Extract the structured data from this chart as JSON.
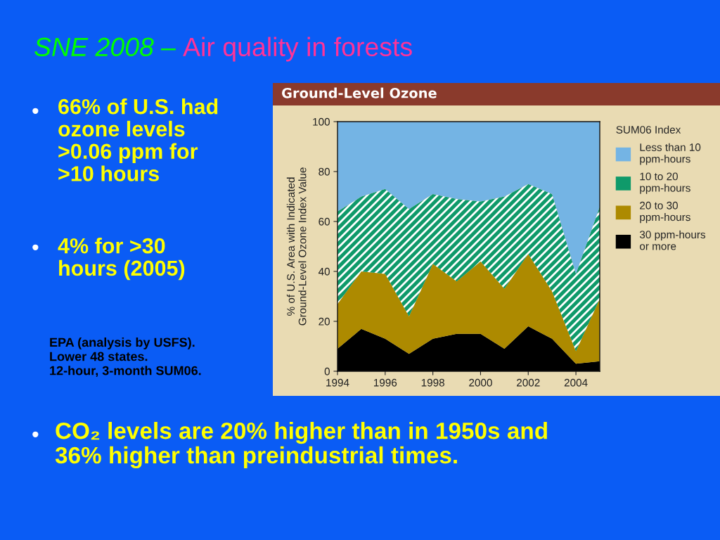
{
  "chart_data": {
    "type": "area",
    "stacked": true,
    "title": "Ground-Level Ozone",
    "ylabel": "% of U.S. Area with Indicated\nGround-Level Ozone Index Value",
    "legend_title": "SUM06 Index",
    "legend": "right",
    "x": [
      1994,
      1995,
      1996,
      1997,
      1998,
      1999,
      2000,
      2001,
      2002,
      2003,
      2004,
      2005
    ],
    "series": [
      {
        "name": "30 ppm-hours\nor more",
        "color": "#000000",
        "values": [
          9,
          17,
          13,
          7,
          13,
          15,
          15,
          9,
          18,
          13,
          3,
          4
        ]
      },
      {
        "name": "20 to 30\nppm-hours",
        "color": "#ad8a00",
        "values": [
          18,
          23,
          26,
          15,
          30,
          21,
          29,
          24,
          29,
          19,
          5,
          25
        ]
      },
      {
        "name": "10 to 20\nppm-hours",
        "color": "#0f9a6a",
        "values": [
          37,
          30,
          34,
          43,
          28,
          33,
          24,
          37,
          28,
          39,
          31,
          37
        ]
      },
      {
        "name": "Less than 10\nppm-hours",
        "color": "#74b4e4",
        "values": [
          36,
          30,
          27,
          35,
          29,
          31,
          32,
          30,
          25,
          29,
          61,
          34
        ]
      }
    ],
    "xlim": [
      1994,
      2005
    ],
    "xticks": [
      1994,
      1996,
      1998,
      2000,
      2002,
      2004
    ],
    "ylim": [
      0,
      100
    ],
    "yticks": [
      0,
      20,
      40,
      60,
      80,
      100
    ],
    "grid": false,
    "annotations": [
      "SNE 2008",
      "–",
      "Air quality in forests",
      "66% of U.S. had\nozone levels\n>0.06 ppm for\n>10 hours",
      "4% for >30\nhours (2005)",
      "EPA (analysis by USFS).\nLower 48 states.\n12-hour, 3-month SUM06.",
      "CO₂ levels are 20% higher than in 1950s and\n36% higher than preindustrial times.",
      "•",
      "•",
      "•"
    ]
  }
}
